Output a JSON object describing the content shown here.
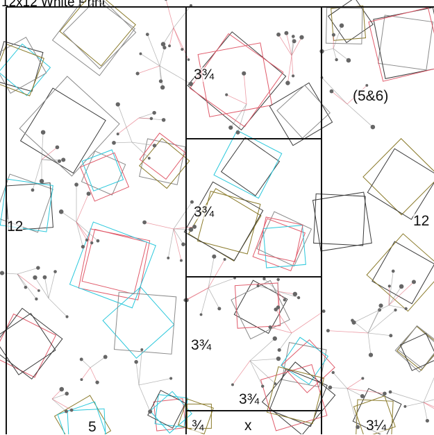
{
  "title": "12x12 White Print",
  "print_colors": {
    "black": "#3a3a3a",
    "gray": "#8a8a8a",
    "olive": "#8a7a2a",
    "red": "#e05a6a",
    "cyan": "#2ac8dc",
    "dot": "#666666"
  },
  "labels": {
    "left_height": "12",
    "left_width": "5",
    "top_mid": "3¾",
    "mid_mid_upper": "3¾",
    "mid_mid_lower": "3¾",
    "mid_bottom_width": "3¾",
    "small_left": "¾",
    "small_x": "x",
    "right_top": "(5&6)",
    "right_height": "12",
    "right_width": "3¼"
  }
}
